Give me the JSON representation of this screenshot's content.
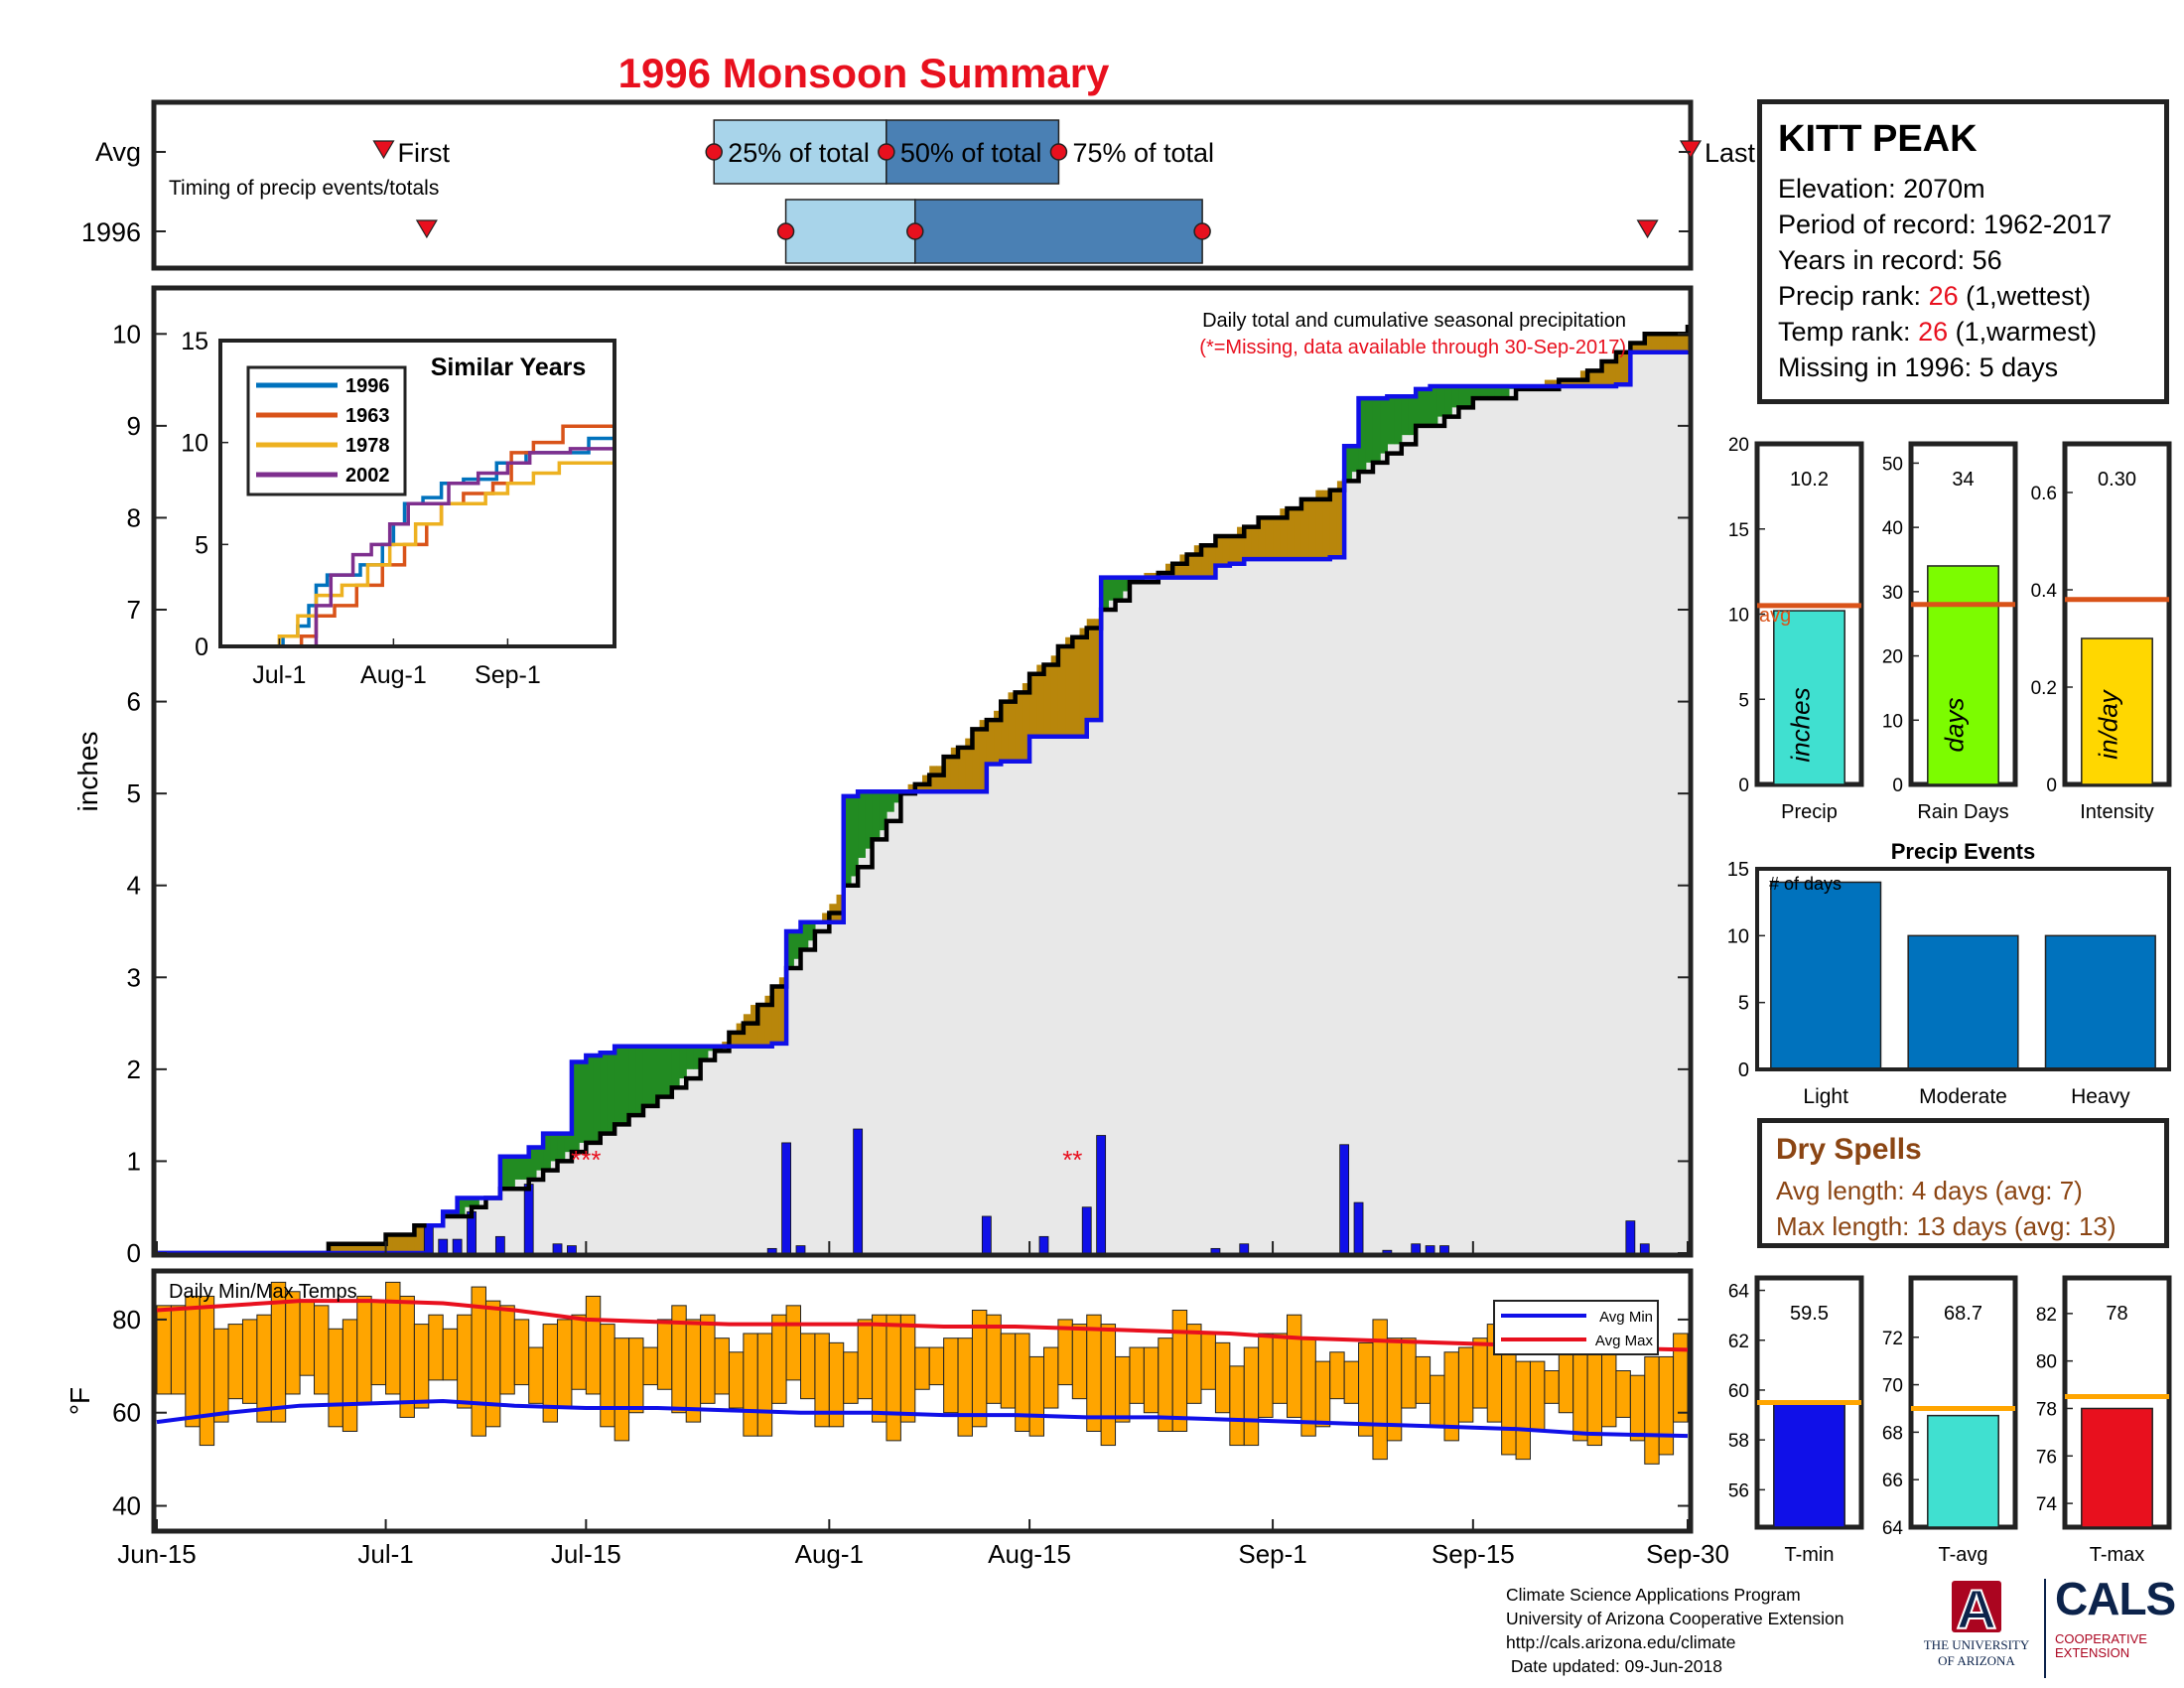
{
  "title": "1996 Monsoon Summary",
  "station": {
    "name": "KITT PEAK",
    "elevation_label": "Elevation: 2070m",
    "period_label": "Period of record: 1962-2017",
    "years_label": "Years in record: 56",
    "precip_rank_prefix": "Precip rank: ",
    "precip_rank": "26",
    "precip_rank_suffix": " (1,wettest)",
    "temp_rank_prefix": "Temp rank: ",
    "temp_rank": "26",
    "temp_rank_suffix": " (1,warmest)",
    "missing_label": "Missing in 1996: 5 days"
  },
  "timing": {
    "row_labels": [
      "Avg",
      "1996"
    ],
    "caption": "Timing of precip events/totals",
    "avg_labels": {
      "first": "First",
      "p25": "25% of total",
      "p50": "50% of total",
      "p75": "75% of total",
      "last": "Last"
    },
    "avg_days": {
      "first": 16,
      "p25": 39,
      "p50": 51,
      "p75": 63,
      "last": 107
    },
    "year_days": {
      "first": 19,
      "p25": 44,
      "p50": 53,
      "p75": 73,
      "last": 104
    },
    "colors": {
      "light": "#a8d4ea",
      "dark": "#4a80b4",
      "marker": "#e8101e"
    }
  },
  "chart_data": [
    {
      "id": "cumulative",
      "type": "area",
      "title": "Daily total and cumulative seasonal precipitation",
      "subtitle": "(*=Missing, data available through 30-Sep-2017)",
      "ylabel": "inches",
      "x_range": [
        "Jun-15",
        "Sep-30"
      ],
      "x_ticks": [
        {
          "day": 0,
          "label": "Jun-15"
        },
        {
          "day": 16,
          "label": "Jul-1"
        },
        {
          "day": 30,
          "label": "Jul-15"
        },
        {
          "day": 47,
          "label": "Aug-1"
        },
        {
          "day": 61,
          "label": "Aug-15"
        },
        {
          "day": 78,
          "label": "Sep-1"
        },
        {
          "day": 92,
          "label": "Sep-15"
        },
        {
          "day": 107,
          "label": "Sep-30"
        }
      ],
      "y_ticks": [
        0,
        1,
        2,
        3,
        4,
        5,
        6,
        7,
        8,
        9,
        10
      ],
      "ylim": [
        0,
        10.5
      ],
      "year_cumulative": [
        [
          0,
          0
        ],
        [
          18,
          0
        ],
        [
          19,
          0.3
        ],
        [
          20,
          0.45
        ],
        [
          21,
          0.6
        ],
        [
          24,
          1.05
        ],
        [
          25,
          1.05
        ],
        [
          26,
          1.15
        ],
        [
          27,
          1.3
        ],
        [
          28,
          1.3
        ],
        [
          29,
          2.08
        ],
        [
          30,
          2.15
        ],
        [
          31,
          2.18
        ],
        [
          32,
          2.25
        ],
        [
          43,
          2.28
        ],
        [
          44,
          3.5
        ],
        [
          45,
          3.6
        ],
        [
          48,
          4.97
        ],
        [
          49,
          5.02
        ],
        [
          53,
          5.02
        ],
        [
          58,
          5.32
        ],
        [
          59,
          5.35
        ],
        [
          61,
          5.62
        ],
        [
          62,
          5.62
        ],
        [
          65,
          5.8
        ],
        [
          66,
          7.35
        ],
        [
          74,
          7.48
        ],
        [
          75,
          7.5
        ],
        [
          76,
          7.55
        ],
        [
          82,
          7.57
        ],
        [
          83,
          8.78
        ],
        [
          84,
          9.3
        ],
        [
          86,
          9.32
        ],
        [
          88,
          9.4
        ],
        [
          89,
          9.43
        ],
        [
          102,
          9.45
        ],
        [
          103,
          9.8
        ],
        [
          107,
          9.82
        ]
      ],
      "avg_cumulative": [
        [
          0,
          0
        ],
        [
          4,
          0.02
        ],
        [
          8,
          0.05
        ],
        [
          12,
          0.1
        ],
        [
          16,
          0.2
        ],
        [
          20,
          0.4
        ],
        [
          24,
          0.7
        ],
        [
          28,
          1.05
        ],
        [
          32,
          1.4
        ],
        [
          36,
          1.82
        ],
        [
          40,
          2.4
        ],
        [
          44,
          3.1
        ],
        [
          48,
          4.0
        ],
        [
          52,
          5.0
        ],
        [
          56,
          5.55
        ],
        [
          60,
          6.15
        ],
        [
          64,
          6.75
        ],
        [
          68,
          7.3
        ],
        [
          72,
          7.65
        ],
        [
          76,
          7.95
        ],
        [
          80,
          8.2
        ],
        [
          84,
          8.55
        ],
        [
          88,
          9.0
        ],
        [
          92,
          9.3
        ],
        [
          96,
          9.45
        ],
        [
          100,
          9.62
        ],
        [
          104,
          10.0
        ],
        [
          107,
          10.1
        ]
      ],
      "daily_precip": [
        {
          "day": 19,
          "value": 0.3
        },
        {
          "day": 20,
          "value": 0.15
        },
        {
          "day": 21,
          "value": 0.15
        },
        {
          "day": 22,
          "value": 0.45
        },
        {
          "day": 24,
          "value": 0.18
        },
        {
          "day": 26,
          "value": 0.75
        },
        {
          "day": 28,
          "value": 0.1
        },
        {
          "day": 29,
          "value": 0.08
        },
        {
          "day": 43,
          "value": 0.05
        },
        {
          "day": 44,
          "value": 1.2
        },
        {
          "day": 45,
          "value": 0.08
        },
        {
          "day": 49,
          "value": 1.35
        },
        {
          "day": 58,
          "value": 0.4
        },
        {
          "day": 62,
          "value": 0.18
        },
        {
          "day": 65,
          "value": 0.5
        },
        {
          "day": 66,
          "value": 1.28
        },
        {
          "day": 74,
          "value": 0.05
        },
        {
          "day": 76,
          "value": 0.1
        },
        {
          "day": 83,
          "value": 1.18
        },
        {
          "day": 84,
          "value": 0.55
        },
        {
          "day": 86,
          "value": 0.03
        },
        {
          "day": 88,
          "value": 0.1
        },
        {
          "day": 89,
          "value": 0.08
        },
        {
          "day": 90,
          "value": 0.08
        },
        {
          "day": 103,
          "value": 0.35
        },
        {
          "day": 104,
          "value": 0.1
        }
      ],
      "missing_markers": [
        {
          "day": 30,
          "label": "***"
        },
        {
          "day": 64,
          "label": "**"
        }
      ],
      "colors": {
        "year_line": "#1010e8",
        "avg_line": "#000000",
        "above": "#228b22",
        "below": "#b8860b",
        "fill": "#e8e8e8",
        "daily_bar": "#1010e8",
        "missing": "#e8101e"
      }
    },
    {
      "id": "similar-years",
      "type": "line",
      "title": "Similar Years",
      "x_ticks": [
        {
          "day": 16,
          "label": "Jul-1"
        },
        {
          "day": 47,
          "label": "Aug-1"
        },
        {
          "day": 78,
          "label": "Sep-1"
        }
      ],
      "y_ticks": [
        0,
        5,
        10,
        15
      ],
      "ylim": [
        0,
        15
      ],
      "series": [
        {
          "name": "1996",
          "color": "#0072bd",
          "values": [
            [
              0,
              0
            ],
            [
              14,
              0
            ],
            [
              17,
              0.5
            ],
            [
              21,
              1.0
            ],
            [
              24,
              2.0
            ],
            [
              26,
              3.0
            ],
            [
              29,
              3.5
            ],
            [
              32,
              3.5
            ],
            [
              38,
              4.0
            ],
            [
              44,
              5.0
            ],
            [
              47,
              6.0
            ],
            [
              50,
              7.0
            ],
            [
              55,
              7.3
            ],
            [
              60,
              8.0
            ],
            [
              66,
              8.2
            ],
            [
              75,
              9.0
            ],
            [
              83,
              9.5
            ],
            [
              90,
              9.5
            ],
            [
              100,
              10.2
            ],
            [
              107,
              10.2
            ]
          ]
        },
        {
          "name": "1963",
          "color": "#d95319",
          "values": [
            [
              0,
              0
            ],
            [
              18,
              0
            ],
            [
              22,
              0.5
            ],
            [
              26,
              1.5
            ],
            [
              31,
              2.0
            ],
            [
              37,
              3.0
            ],
            [
              44,
              4.0
            ],
            [
              50,
              5.0
            ],
            [
              56,
              6.0
            ],
            [
              60,
              7.0
            ],
            [
              66,
              7.5
            ],
            [
              74,
              8.0
            ],
            [
              79,
              9.5
            ],
            [
              85,
              10.0
            ],
            [
              93,
              10.8
            ],
            [
              107,
              10.8
            ]
          ]
        },
        {
          "name": "1978",
          "color": "#edb120",
          "values": [
            [
              0,
              0
            ],
            [
              12,
              0
            ],
            [
              16,
              0.5
            ],
            [
              21,
              1.5
            ],
            [
              26,
              2.5
            ],
            [
              33,
              3.0
            ],
            [
              40,
              4.0
            ],
            [
              46,
              5.0
            ],
            [
              53,
              6.0
            ],
            [
              60,
              7.0
            ],
            [
              66,
              7.0
            ],
            [
              72,
              7.5
            ],
            [
              78,
              8.0
            ],
            [
              85,
              8.5
            ],
            [
              92,
              9.0
            ],
            [
              107,
              9.0
            ]
          ]
        },
        {
          "name": "2002",
          "color": "#7e2f8e",
          "values": [
            [
              0,
              0
            ],
            [
              22,
              0
            ],
            [
              26,
              2.0
            ],
            [
              30,
              3.5
            ],
            [
              36,
              4.5
            ],
            [
              41,
              5.0
            ],
            [
              46,
              6.0
            ],
            [
              51,
              7.0
            ],
            [
              57,
              7.0
            ],
            [
              62,
              8.0
            ],
            [
              70,
              8.5
            ],
            [
              78,
              9.0
            ],
            [
              84,
              9.5
            ],
            [
              95,
              9.7
            ],
            [
              107,
              10.0
            ]
          ]
        }
      ]
    },
    {
      "id": "season-totals",
      "type": "bar",
      "categories": [
        "Precip",
        "Rain Days",
        "Intensity"
      ],
      "panels": [
        {
          "category": "Precip",
          "value": 10.2,
          "value_label": "10.2",
          "avg": 10.5,
          "units": "inches",
          "color": "#40e0d0",
          "ylim": [
            0,
            20
          ],
          "y_ticks": [
            0,
            5,
            10,
            15,
            20
          ],
          "avg_label": "avg"
        },
        {
          "category": "Rain Days",
          "value": 34,
          "value_label": "34",
          "avg": 28,
          "units": "days",
          "color": "#7cfc00",
          "ylim": [
            0,
            53
          ],
          "y_ticks": [
            0,
            10,
            20,
            30,
            40,
            50
          ],
          "avg_label": ""
        },
        {
          "category": "Intensity",
          "value": 0.3,
          "value_label": "0.30",
          "avg": 0.38,
          "units": "in/day",
          "color": "#ffd700",
          "ylim": [
            0,
            0.7
          ],
          "y_ticks": [
            0,
            0.2,
            0.4,
            0.6
          ],
          "avg_label": ""
        }
      ],
      "avg_color": "#d95319"
    },
    {
      "id": "precip-events",
      "type": "bar",
      "title": "Precip Events",
      "ylabel": "# of days",
      "categories": [
        "Light",
        "Moderate",
        "Heavy"
      ],
      "values": [
        14,
        10,
        10
      ],
      "ylim": [
        0,
        15
      ],
      "y_ticks": [
        0,
        5,
        10,
        15
      ],
      "color": "#0072bd"
    },
    {
      "id": "daily-temps",
      "type": "bar",
      "title": "Daily Min/Max Temps",
      "ylabel": "°F",
      "ylim": [
        35,
        90
      ],
      "y_ticks": [
        40,
        60,
        80
      ],
      "legend": [
        {
          "name": "Avg Min",
          "color": "#1010e8"
        },
        {
          "name": "Avg Max",
          "color": "#e8101e"
        }
      ],
      "avg_min": [
        [
          0,
          58
        ],
        [
          5,
          60
        ],
        [
          10,
          61.5
        ],
        [
          15,
          62
        ],
        [
          20,
          62.5
        ],
        [
          25,
          61.5
        ],
        [
          30,
          61
        ],
        [
          35,
          61
        ],
        [
          40,
          60.5
        ],
        [
          45,
          60
        ],
        [
          50,
          60
        ],
        [
          55,
          59.5
        ],
        [
          60,
          59.5
        ],
        [
          65,
          59
        ],
        [
          70,
          59
        ],
        [
          75,
          58.5
        ],
        [
          80,
          58
        ],
        [
          85,
          57.5
        ],
        [
          90,
          57
        ],
        [
          95,
          56.5
        ],
        [
          100,
          55.5
        ],
        [
          107,
          55
        ]
      ],
      "avg_max": [
        [
          0,
          82
        ],
        [
          5,
          83
        ],
        [
          10,
          84
        ],
        [
          15,
          84
        ],
        [
          20,
          83.5
        ],
        [
          25,
          82
        ],
        [
          30,
          80
        ],
        [
          35,
          79.5
        ],
        [
          40,
          79
        ],
        [
          45,
          79
        ],
        [
          50,
          79
        ],
        [
          55,
          78.5
        ],
        [
          60,
          78.5
        ],
        [
          65,
          78
        ],
        [
          70,
          77.5
        ],
        [
          75,
          77
        ],
        [
          80,
          76
        ],
        [
          85,
          75.5
        ],
        [
          90,
          75
        ],
        [
          95,
          74.5
        ],
        [
          100,
          74
        ],
        [
          107,
          73.5
        ]
      ],
      "bar_color": "#ffa500",
      "daily_min_start": 60,
      "daily_max_start": 80
    },
    {
      "id": "temp-summary",
      "type": "bar",
      "categories": [
        "T-min",
        "T-avg",
        "T-max"
      ],
      "panels": [
        {
          "category": "T-min",
          "value": 59.5,
          "value_label": "59.5",
          "avg": 59.5,
          "color": "#1010e8",
          "ylim": [
            54.5,
            64.5
          ],
          "y_ticks": [
            56,
            58,
            60,
            62,
            64
          ]
        },
        {
          "category": "T-avg",
          "value": 68.7,
          "value_label": "68.7",
          "avg": 69,
          "color": "#40e0d0",
          "ylim": [
            64,
            74.5
          ],
          "y_ticks": [
            64,
            66,
            68,
            70,
            72
          ]
        },
        {
          "category": "T-max",
          "value": 78,
          "value_label": "78",
          "avg": 78.5,
          "color": "#e8101e",
          "ylim": [
            73,
            83.5
          ],
          "y_ticks": [
            74,
            76,
            78,
            80,
            82
          ]
        }
      ],
      "avg_color": "#ffa500"
    }
  ],
  "dry_spells": {
    "title": "Dry Spells",
    "avg_length": "Avg length: 4 days (avg: 7)",
    "max_length": "Max length: 13 days (avg: 13)"
  },
  "footer": {
    "lines": [
      "Climate Science Applications Program",
      "University of Arizona Cooperative Extension",
      "http://cals.arizona.edu/climate",
      " Date updated: 09-Jun-2018"
    ]
  },
  "logos": {
    "ua_letter": "A",
    "ua_text_1": "THE UNIVERSITY",
    "ua_text_2": "OF ARIZONA",
    "cals": "CALS",
    "cals_sub_1": "COOPERATIVE",
    "cals_sub_2": "EXTENSION"
  }
}
